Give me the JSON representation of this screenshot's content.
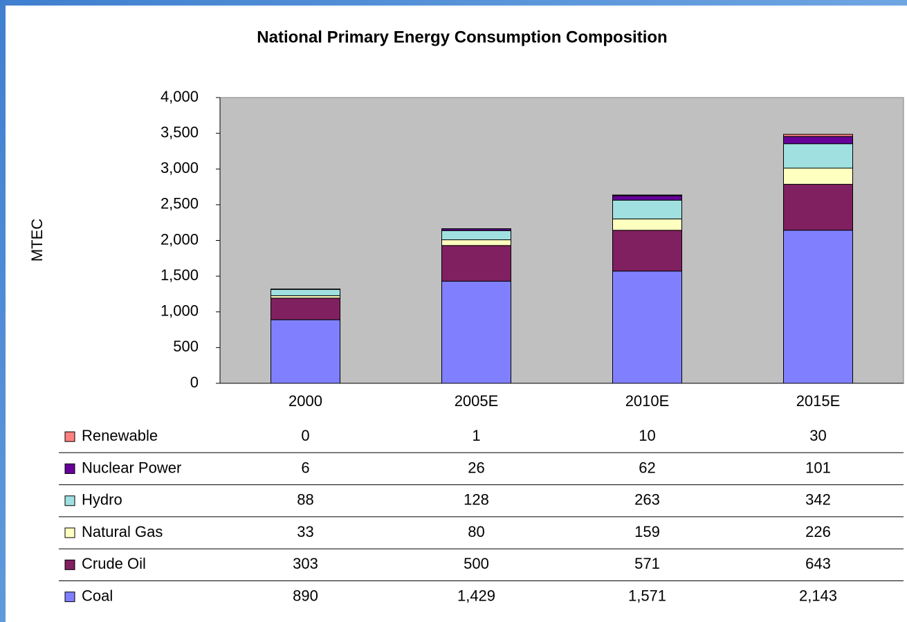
{
  "chart_data": {
    "type": "stacked_bar",
    "title": "National Primary Energy Consumption Composition",
    "y_label": "MTEC",
    "categories": [
      "2000",
      "2005E",
      "2010E",
      "2015E"
    ],
    "series": [
      {
        "name": "Renewable",
        "color": "#ff8080",
        "values": [
          0,
          1,
          10,
          30
        ]
      },
      {
        "name": "Nuclear Power",
        "color": "#660099",
        "values": [
          6,
          26,
          62,
          101
        ]
      },
      {
        "name": "Hydro",
        "color": "#a0e0e0",
        "values": [
          88,
          128,
          263,
          342
        ]
      },
      {
        "name": "Natural Gas",
        "color": "#ffffc0",
        "values": [
          33,
          80,
          159,
          226
        ]
      },
      {
        "name": "Crude Oil",
        "color": "#802060",
        "values": [
          303,
          500,
          571,
          643
        ]
      },
      {
        "name": "Coal",
        "color": "#8080ff",
        "values": [
          890,
          1429,
          1571,
          2143
        ],
        "value_labels": [
          "890",
          "1,429",
          "1,571",
          "2,143"
        ]
      }
    ],
    "ylim": [
      0,
      4000
    ],
    "yticks": [
      0,
      500,
      {
        "value": 1000,
        "label": "1,000"
      },
      {
        "value": 1500,
        "label": "1,500"
      },
      {
        "value": 2000,
        "label": "2,000"
      },
      {
        "value": 2500,
        "label": "2,500"
      },
      {
        "value": 3000,
        "label": "3,000"
      },
      {
        "value": 3500,
        "label": "3,500"
      },
      {
        "value": 4000,
        "label": "4,000"
      }
    ],
    "grid": false,
    "plot_background": "#c0c0c0",
    "data_table": true
  }
}
